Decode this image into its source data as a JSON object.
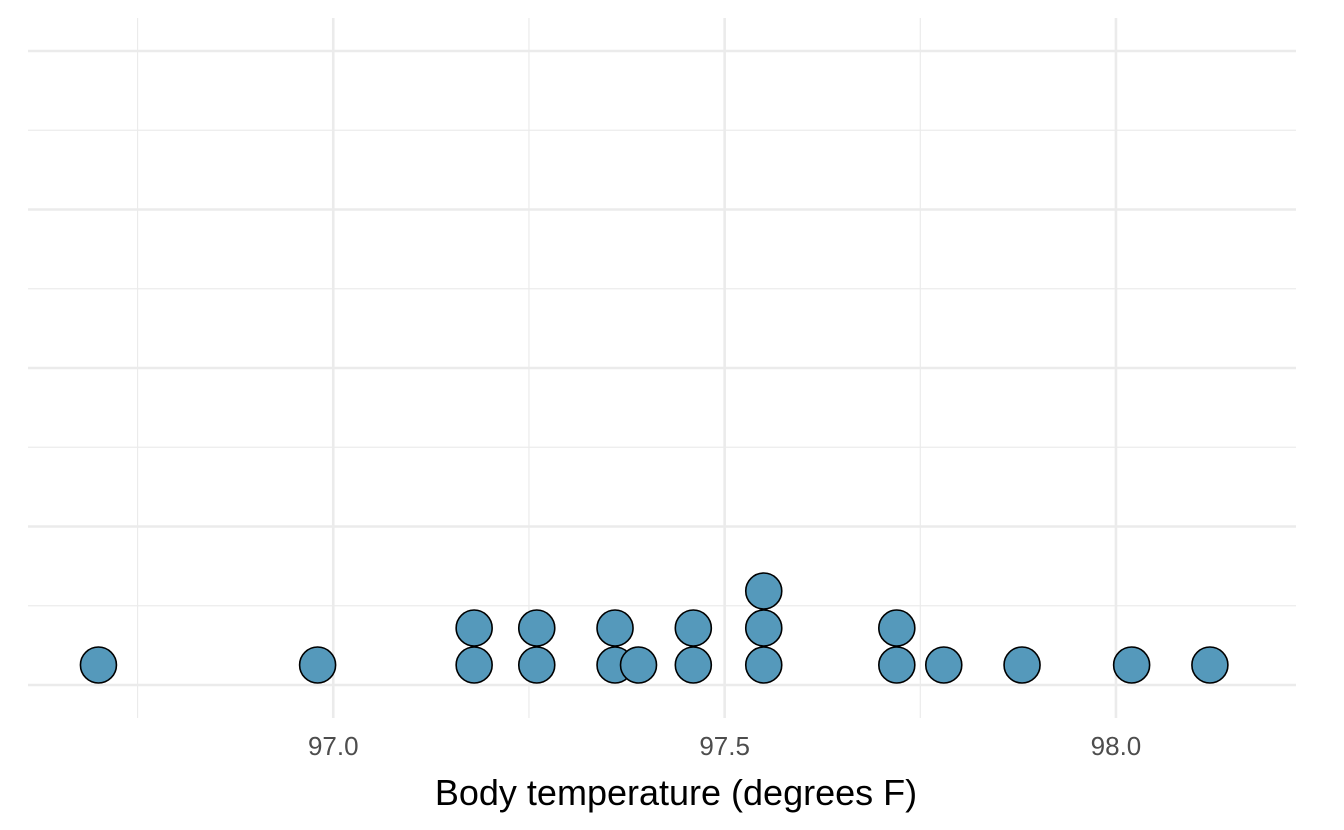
{
  "chart_data": {
    "type": "scatter",
    "subtype": "dotplot",
    "title": "",
    "xlabel": "Body temperature (degrees F)",
    "ylabel": "",
    "xlim": [
      96.61,
      98.23
    ],
    "x_ticks": [
      97.0,
      97.5,
      98.0
    ],
    "x_tick_labels": [
      "97.0",
      "97.5",
      "98.0"
    ],
    "grid": true,
    "legend": "none",
    "dot_color": "#5599bb",
    "dot_outline": "#000000",
    "stacks": [
      {
        "x": 96.7,
        "count": 1
      },
      {
        "x": 96.98,
        "count": 1
      },
      {
        "x": 97.18,
        "count": 2
      },
      {
        "x": 97.26,
        "count": 2
      },
      {
        "x": 97.36,
        "count": 2
      },
      {
        "x": 97.39,
        "count": 1
      },
      {
        "x": 97.46,
        "count": 2
      },
      {
        "x": 97.55,
        "count": 3
      },
      {
        "x": 97.72,
        "count": 2
      },
      {
        "x": 97.78,
        "count": 1
      },
      {
        "x": 97.88,
        "count": 1
      },
      {
        "x": 98.02,
        "count": 1
      },
      {
        "x": 98.12,
        "count": 1
      }
    ]
  }
}
